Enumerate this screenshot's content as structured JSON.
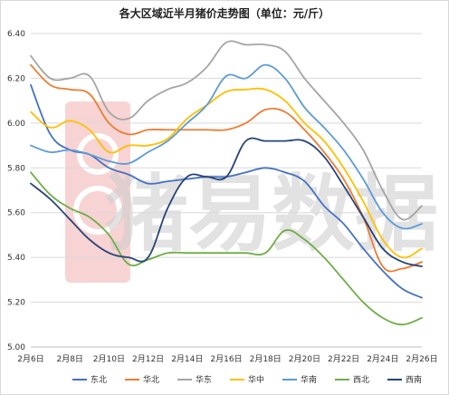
{
  "chart_data": {
    "type": "line",
    "title": "各大区域近半月猪价走势图（单位：元/斤）",
    "xlabel": "",
    "ylabel": "",
    "ylim": [
      5.0,
      6.4
    ],
    "yticks": [
      "5.00",
      "5.20",
      "5.40",
      "5.60",
      "5.80",
      "6.00",
      "6.20",
      "6.40"
    ],
    "x": [
      "2月6日",
      "2月7日",
      "2月8日",
      "2月9日",
      "2月10日",
      "2月11日",
      "2月12日",
      "2月13日",
      "2月14日",
      "2月15日",
      "2月16日",
      "2月17日",
      "2月18日",
      "2月19日",
      "2月20日",
      "2月21日",
      "2月22日",
      "2月23日",
      "2月24日",
      "2月25日",
      "2月26日"
    ],
    "xtick_labels": [
      "2月6日",
      "2月8日",
      "2月10日",
      "2月12日",
      "2月14日",
      "2月16日",
      "2月18日",
      "2月20日",
      "2月22日",
      "2月24日",
      "2月26日"
    ],
    "grid": "horizontal",
    "legend": "bottom",
    "watermark": "猪易数据",
    "series": [
      {
        "name": "东北",
        "color": "#4472C4",
        "values": [
          6.17,
          5.95,
          5.88,
          5.86,
          5.8,
          5.77,
          5.73,
          5.74,
          5.75,
          5.76,
          5.76,
          5.78,
          5.8,
          5.78,
          5.74,
          5.63,
          5.55,
          5.44,
          5.34,
          5.26,
          5.22
        ]
      },
      {
        "name": "华北",
        "color": "#ED7D31",
        "values": [
          6.26,
          6.17,
          6.15,
          6.13,
          6.0,
          5.95,
          5.97,
          5.97,
          5.97,
          5.97,
          5.97,
          6.0,
          6.06,
          6.05,
          5.97,
          5.87,
          5.75,
          5.58,
          5.36,
          5.35,
          5.38
        ]
      },
      {
        "name": "华东",
        "color": "#A5A5A5",
        "values": [
          6.3,
          6.2,
          6.2,
          6.21,
          6.05,
          6.02,
          6.1,
          6.15,
          6.18,
          6.25,
          6.36,
          6.35,
          6.35,
          6.32,
          6.2,
          6.1,
          6.0,
          5.88,
          5.7,
          5.57,
          5.63
        ]
      },
      {
        "name": "华中",
        "color": "#FFC000",
        "values": [
          6.05,
          5.98,
          6.01,
          5.97,
          5.87,
          5.9,
          5.9,
          5.93,
          6.02,
          6.08,
          6.14,
          6.15,
          6.15,
          6.1,
          6.0,
          5.92,
          5.8,
          5.65,
          5.48,
          5.4,
          5.44
        ]
      },
      {
        "name": "华南",
        "color": "#5B9BD5",
        "values": [
          5.9,
          5.87,
          5.88,
          5.86,
          5.83,
          5.82,
          5.87,
          5.92,
          6.0,
          6.08,
          6.21,
          6.2,
          6.26,
          6.2,
          6.07,
          5.98,
          5.88,
          5.75,
          5.6,
          5.53,
          5.55
        ]
      },
      {
        "name": "西北",
        "color": "#70AD47",
        "values": [
          5.78,
          5.68,
          5.62,
          5.58,
          5.5,
          5.37,
          5.39,
          5.42,
          5.42,
          5.42,
          5.42,
          5.42,
          5.42,
          5.52,
          5.48,
          5.4,
          5.3,
          5.2,
          5.13,
          5.1,
          5.13
        ]
      },
      {
        "name": "西南",
        "color": "#264478",
        "values": [
          5.73,
          5.66,
          5.57,
          5.48,
          5.42,
          5.4,
          5.4,
          5.62,
          5.76,
          5.76,
          5.76,
          5.92,
          5.92,
          5.92,
          5.92,
          5.85,
          5.72,
          5.58,
          5.44,
          5.38,
          5.36
        ]
      }
    ]
  }
}
